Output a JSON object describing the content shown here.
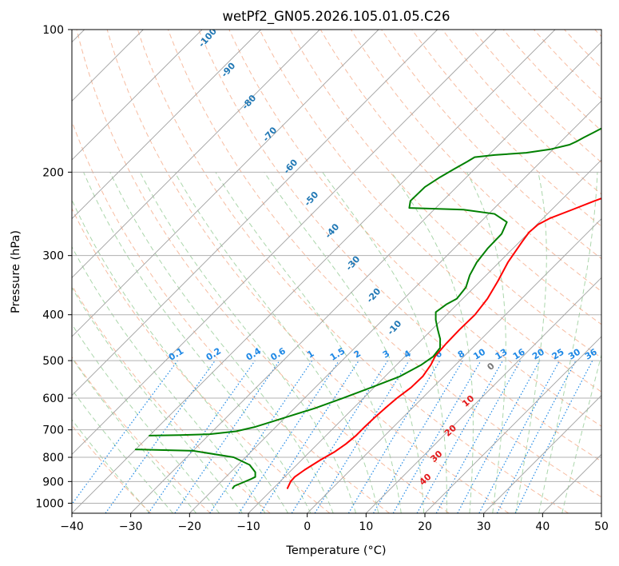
{
  "chart_data": {
    "type": "line",
    "subtype": "skew-t log-p",
    "title": "wetPf2_GN05.2026.105.01.05.C26",
    "xlabel": "Temperature (°C)",
    "ylabel": "Pressure (hPa)",
    "xlim": [
      -40,
      50
    ],
    "ylim": [
      1050,
      100
    ],
    "y_scale": "log",
    "grid": true,
    "x_ticks": [
      "−40",
      "−30",
      "−20",
      "−10",
      "0",
      "10",
      "20",
      "30",
      "40",
      "50"
    ],
    "y_ticks": [
      "100",
      "200",
      "300",
      "400",
      "500",
      "600",
      "700",
      "800",
      "900",
      "1000"
    ],
    "series": [
      {
        "color": "#ff0000",
        "points": [
          [
            -7.6,
            930
          ],
          [
            -8.2,
            900
          ],
          [
            -8.3,
            880
          ],
          [
            -7.8,
            850
          ],
          [
            -6.8,
            810
          ],
          [
            -5.8,
            780
          ],
          [
            -5.2,
            750
          ],
          [
            -4.9,
            720
          ],
          [
            -4.9,
            690
          ],
          [
            -4.8,
            660
          ],
          [
            -4.6,
            630
          ],
          [
            -4.3,
            600
          ],
          [
            -3.7,
            570
          ],
          [
            -3.6,
            540
          ],
          [
            -4.2,
            510
          ],
          [
            -4.9,
            490
          ],
          [
            -5.2,
            460
          ],
          [
            -5.3,
            430
          ],
          [
            -5.2,
            400
          ],
          [
            -5.8,
            370
          ],
          [
            -7.0,
            340
          ],
          [
            -8.5,
            310
          ],
          [
            -9.6,
            280
          ],
          [
            -10.0,
            268
          ],
          [
            -9.8,
            258
          ],
          [
            -8.8,
            250
          ],
          [
            -6.5,
            240
          ],
          [
            -4.2,
            230
          ],
          [
            -1.5,
            220
          ],
          [
            0.5,
            210
          ],
          [
            2.2,
            200
          ],
          [
            4.5,
            190
          ],
          [
            7.0,
            180
          ],
          [
            9.2,
            170
          ],
          [
            11.8,
            160
          ],
          [
            14.5,
            150
          ],
          [
            17.5,
            140
          ],
          [
            20.5,
            130
          ],
          [
            23.8,
            120
          ],
          [
            27.5,
            110
          ],
          [
            31.5,
            100
          ]
        ]
      },
      {
        "color": "#008000",
        "points": [
          [
            -16.9,
            930
          ],
          [
            -17.0,
            920
          ],
          [
            -16.2,
            905
          ],
          [
            -15.4,
            890
          ],
          [
            -15.0,
            880
          ],
          [
            -15.8,
            860
          ],
          [
            -18.0,
            830
          ],
          [
            -22.0,
            800
          ],
          [
            -30.0,
            775
          ],
          [
            -39.5,
            770
          ],
          [
            -40.0,
            770
          ]
        ]
      },
      {
        "color": "#008000",
        "points": [
          [
            -40.0,
            720
          ],
          [
            -35.0,
            718
          ],
          [
            -30.0,
            715
          ],
          [
            -26.0,
            705
          ],
          [
            -23.5,
            690
          ],
          [
            -21.8,
            675
          ],
          [
            -19.5,
            655
          ],
          [
            -16.5,
            630
          ],
          [
            -13.5,
            600
          ],
          [
            -10.5,
            570
          ],
          [
            -7.5,
            540
          ],
          [
            -5.8,
            510
          ],
          [
            -5.2,
            490
          ],
          [
            -5.5,
            470
          ],
          [
            -7.0,
            450
          ],
          [
            -9.0,
            430
          ],
          [
            -11.0,
            410
          ],
          [
            -12.3,
            395
          ],
          [
            -11.8,
            380
          ],
          [
            -11.0,
            370
          ],
          [
            -11.4,
            350
          ],
          [
            -12.8,
            330
          ],
          [
            -13.8,
            310
          ],
          [
            -14.3,
            290
          ],
          [
            -14.4,
            270
          ],
          [
            -15.5,
            255
          ],
          [
            -19.0,
            245
          ],
          [
            -25.0,
            240
          ],
          [
            -34.5,
            238
          ],
          [
            -35.5,
            230
          ],
          [
            -35.4,
            215
          ],
          [
            -34.5,
            205
          ],
          [
            -33.5,
            197
          ],
          [
            -32.5,
            190
          ],
          [
            -32.0,
            186
          ],
          [
            -29.0,
            184
          ],
          [
            -24.0,
            182
          ],
          [
            -20.5,
            179
          ],
          [
            -18.0,
            175
          ],
          [
            -17.3,
            172
          ],
          [
            -16.8,
            169
          ],
          [
            -16.0,
            165
          ],
          [
            -15.0,
            160
          ],
          [
            -12.5,
            155
          ],
          [
            -9.5,
            150
          ],
          [
            -8.0,
            140
          ],
          [
            -6.5,
            130
          ],
          [
            -4.8,
            120
          ],
          [
            -3.2,
            110
          ],
          [
            -1.5,
            100
          ]
        ]
      }
    ],
    "mixing_ratio_labels": [
      "0.1",
      "0.2",
      "0.4",
      "0.6",
      "1",
      "1.5",
      "2",
      "3",
      "4",
      "6",
      "8",
      "10",
      "13",
      "16",
      "20",
      "25",
      "30",
      "36"
    ],
    "dry_adiabat_labels": [
      "-100",
      "-90",
      "-80",
      "-70",
      "-60",
      "-50",
      "-40",
      "-30",
      "-20",
      "-10"
    ],
    "moist_adiabat_labels": [
      "0",
      "10",
      "20",
      "30",
      "40"
    ],
    "line_colors": {
      "isotherm": "#a0a0a0",
      "dry_adiabat": "#f4a582",
      "moist_adiabat": "#8fc88f",
      "mixing_ratio": "#1e88e5",
      "dry_adiabat_label": "#1f77b4",
      "moist_adiabat_label": "#e41a1c",
      "zero_label": "#777777"
    }
  }
}
